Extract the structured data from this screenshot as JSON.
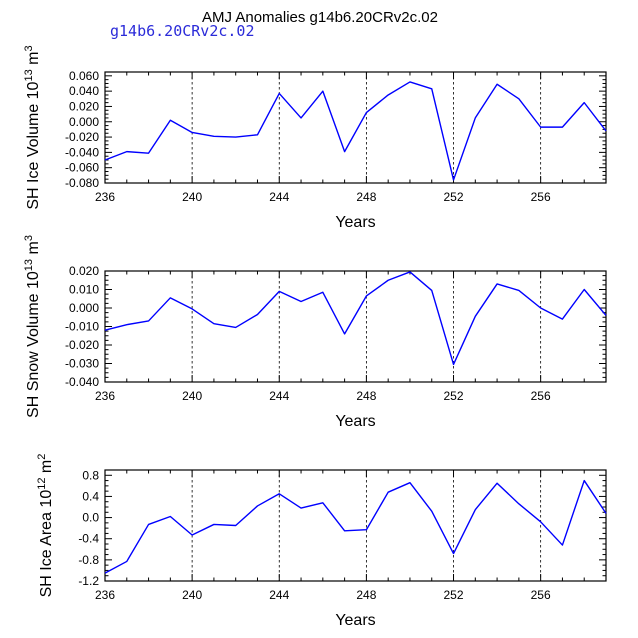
{
  "title": "AMJ Anomalies g14b6.20CRv2c.02",
  "subtitle": "g14b6.20CRv2c.02",
  "colors": {
    "series": "#0000ff",
    "axis": "#000000",
    "grid": "#000000"
  },
  "chart_data": [
    {
      "type": "line",
      "ylabel_main": "SH Ice Volume 10",
      "ylabel_sup": "13",
      "ylabel_unit": " m",
      "ylabel_unit_sup": "3",
      "xlabel": "Years",
      "xlim": [
        236,
        259
      ],
      "ylim": [
        -0.08,
        0.065
      ],
      "xticks": [
        236,
        240,
        244,
        248,
        252,
        256
      ],
      "yticks": [
        -0.08,
        -0.06,
        -0.04,
        -0.02,
        0.0,
        0.02,
        0.04,
        0.06
      ],
      "ytick_labels": [
        "-0.080",
        "-0.060",
        "-0.040",
        "-0.020",
        "0.000",
        "0.020",
        "0.040",
        "0.060"
      ],
      "x": [
        236,
        237,
        238,
        239,
        240,
        241,
        242,
        243,
        244,
        245,
        246,
        247,
        248,
        249,
        250,
        251,
        252,
        253,
        254,
        255,
        256,
        257,
        258,
        259
      ],
      "values": [
        -0.05,
        -0.039,
        -0.041,
        0.002,
        -0.014,
        -0.019,
        -0.02,
        -0.017,
        0.037,
        0.005,
        0.04,
        -0.039,
        0.012,
        0.035,
        0.052,
        0.043,
        -0.076,
        0.005,
        0.049,
        0.03,
        -0.007,
        -0.007,
        0.025,
        -0.012
      ]
    },
    {
      "type": "line",
      "ylabel_main": "SH Snow Volume 10",
      "ylabel_sup": "13",
      "ylabel_unit": " m",
      "ylabel_unit_sup": "3",
      "xlabel": "Years",
      "xlim": [
        236,
        259
      ],
      "ylim": [
        -0.04,
        0.02
      ],
      "xticks": [
        236,
        240,
        244,
        248,
        252,
        256
      ],
      "yticks": [
        -0.04,
        -0.03,
        -0.02,
        -0.01,
        0.0,
        0.01,
        0.02
      ],
      "ytick_labels": [
        "-0.040",
        "-0.030",
        "-0.020",
        "-0.010",
        "0.000",
        "0.010",
        "0.020"
      ],
      "x": [
        236,
        237,
        238,
        239,
        240,
        241,
        242,
        243,
        244,
        245,
        246,
        247,
        248,
        249,
        250,
        251,
        252,
        253,
        254,
        255,
        256,
        257,
        258,
        259
      ],
      "values": [
        -0.012,
        -0.009,
        -0.007,
        0.0055,
        -0.0005,
        -0.0085,
        -0.0105,
        -0.0035,
        0.009,
        0.0035,
        0.0085,
        -0.014,
        0.0065,
        0.015,
        0.0195,
        0.0095,
        -0.0305,
        -0.0045,
        0.013,
        0.0095,
        0.0,
        -0.006,
        0.01,
        -0.004
      ]
    },
    {
      "type": "line",
      "ylabel_main": "SH Ice Area 10",
      "ylabel_sup": "12",
      "ylabel_unit": " m",
      "ylabel_unit_sup": "2",
      "xlabel": "Years",
      "xlim": [
        236,
        259
      ],
      "ylim": [
        -1.2,
        0.9
      ],
      "xticks": [
        236,
        240,
        244,
        248,
        252,
        256
      ],
      "yticks": [
        -1.2,
        -0.8,
        -0.4,
        0.0,
        0.4,
        0.8
      ],
      "ytick_labels": [
        "-1.2",
        "-0.8",
        "-0.4",
        "0.0",
        "0.4",
        "0.8"
      ],
      "x": [
        236,
        237,
        238,
        239,
        240,
        241,
        242,
        243,
        244,
        245,
        246,
        247,
        248,
        249,
        250,
        251,
        252,
        253,
        254,
        255,
        256,
        257,
        258,
        259
      ],
      "values": [
        -1.05,
        -0.83,
        -0.13,
        0.02,
        -0.33,
        -0.13,
        -0.15,
        0.22,
        0.45,
        0.18,
        0.28,
        -0.25,
        -0.23,
        0.48,
        0.66,
        0.12,
        -0.68,
        0.15,
        0.65,
        0.26,
        -0.08,
        -0.52,
        0.7,
        0.08
      ]
    }
  ]
}
